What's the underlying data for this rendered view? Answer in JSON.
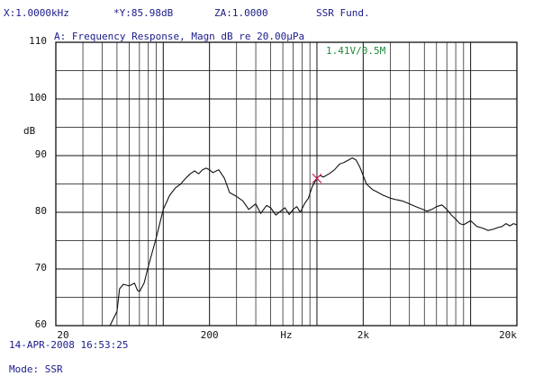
{
  "readouts": {
    "x": "X:1.0000kHz",
    "y": "*Y:85.98dB",
    "z": "ZA:1.0000",
    "mode": "SSR Fund."
  },
  "footer": {
    "timestamp": "14-APR-2008 16:53:25",
    "mode": "Mode: SSR"
  },
  "colors": {
    "trace": "#111111",
    "grid": "#111111",
    "cursor": "#cc2255",
    "stimulus": "#1f8a3a",
    "text": "#1a1a8a"
  },
  "chart_data": {
    "type": "line",
    "title": "A: Frequency Response, Magn dB re 20.00µPa",
    "annotation": "1.41V/0.5M",
    "ylabel": "dB",
    "xlabel": "Hz",
    "xscale": "log",
    "xlim": [
      20,
      20000
    ],
    "ylim": [
      60,
      110
    ],
    "grid": true,
    "yticks": [
      60,
      70,
      80,
      90,
      100,
      110
    ],
    "xticks": [
      {
        "value": 20,
        "label": "20"
      },
      {
        "value": 200,
        "label": "200"
      },
      {
        "value": 632,
        "label": "Hz"
      },
      {
        "value": 2000,
        "label": "2k"
      },
      {
        "value": 20000,
        "label": "20k"
      }
    ],
    "cursor": {
      "x": 1000,
      "y": 85.98
    },
    "series": [
      {
        "x": [
          45,
          50,
          52,
          55,
          60,
          65,
          68,
          70,
          75,
          80,
          90,
          100,
          110,
          120,
          130,
          140,
          150,
          160,
          170,
          180,
          190,
          200,
          210,
          230,
          250,
          270,
          300,
          330,
          360,
          400,
          430,
          470,
          500,
          540,
          580,
          620,
          660,
          700,
          740,
          780,
          830,
          880,
          930,
          1000,
          1050,
          1100,
          1200,
          1300,
          1400,
          1500,
          1600,
          1700,
          1800,
          1900,
          2000,
          2100,
          2300,
          2500,
          2700,
          3000,
          3300,
          3600,
          4000,
          4400,
          4800,
          5200,
          5600,
          6000,
          6500,
          7000,
          7500,
          8000,
          8500,
          9000,
          10000,
          11000,
          12000,
          13000,
          14000,
          15000,
          16000,
          17000,
          18000,
          19000,
          20000
        ],
        "y": [
          60,
          62.5,
          66.5,
          67.3,
          67.0,
          67.5,
          66.2,
          66.0,
          67.5,
          70.5,
          75.5,
          80.5,
          83.0,
          84.3,
          85.0,
          86.0,
          86.8,
          87.3,
          86.8,
          87.5,
          87.8,
          87.5,
          87.0,
          87.5,
          86.0,
          83.5,
          82.8,
          82.0,
          80.5,
          81.5,
          79.8,
          81.2,
          80.8,
          79.5,
          80.2,
          80.8,
          79.6,
          80.5,
          81.0,
          80.0,
          81.5,
          82.5,
          84.5,
          86.0,
          86.5,
          86.2,
          86.8,
          87.5,
          88.5,
          88.8,
          89.2,
          89.6,
          89.2,
          88.0,
          86.5,
          85.0,
          84.0,
          83.5,
          83.0,
          82.5,
          82.2,
          82.0,
          81.5,
          81.0,
          80.6,
          80.2,
          80.5,
          81.0,
          81.3,
          80.5,
          79.5,
          78.8,
          78.0,
          77.8,
          78.5,
          77.5,
          77.2,
          76.8,
          77.0,
          77.3,
          77.5,
          78.0,
          77.6,
          78.0,
          77.8
        ]
      }
    ]
  }
}
